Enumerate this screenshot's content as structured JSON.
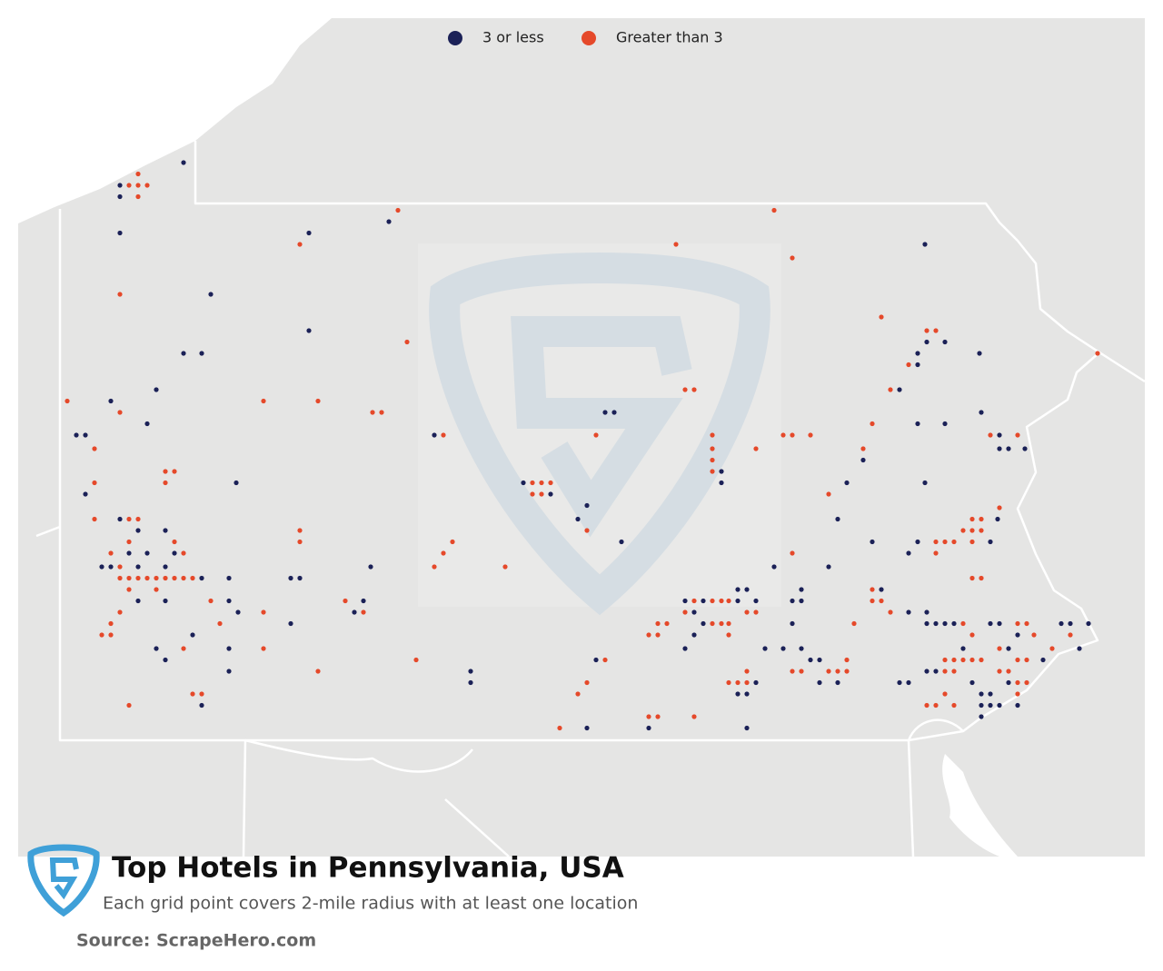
{
  "chart_data": {
    "type": "map",
    "title": "Top Hotels in Pennsylvania, USA",
    "subtitle": "Each grid point covers 2-mile radius with at least one location",
    "source": "Source: ScrapeHero.com",
    "series": [
      {
        "name": "3 or less",
        "color": "#1b2157",
        "points": [
          [
            -79.84,
            42.18
          ],
          [
            -80.19,
            42.08
          ],
          [
            -80.19,
            42.03
          ],
          [
            -80.19,
            41.87
          ],
          [
            -79.15,
            41.87
          ],
          [
            -78.71,
            41.92
          ],
          [
            -79.69,
            41.6
          ],
          [
            -79.15,
            41.44
          ],
          [
            -79.84,
            41.34
          ],
          [
            -79.74,
            41.34
          ],
          [
            -79.99,
            41.18
          ],
          [
            -80.24,
            41.13
          ],
          [
            -80.04,
            41.03
          ],
          [
            -80.43,
            40.98
          ],
          [
            -80.38,
            40.98
          ],
          [
            -80.38,
            40.72
          ],
          [
            -79.55,
            40.77
          ],
          [
            -80.19,
            40.61
          ],
          [
            -80.09,
            40.56
          ],
          [
            -79.94,
            40.56
          ],
          [
            -80.14,
            40.46
          ],
          [
            -80.04,
            40.46
          ],
          [
            -79.89,
            40.46
          ],
          [
            -80.29,
            40.4
          ],
          [
            -80.24,
            40.4
          ],
          [
            -80.09,
            40.4
          ],
          [
            -79.94,
            40.4
          ],
          [
            -79.74,
            40.35
          ],
          [
            -79.59,
            40.35
          ],
          [
            -79.25,
            40.35
          ],
          [
            -79.2,
            40.35
          ],
          [
            -78.81,
            40.4
          ],
          [
            -80.09,
            40.25
          ],
          [
            -79.94,
            40.25
          ],
          [
            -79.59,
            40.25
          ],
          [
            -79.54,
            40.2
          ],
          [
            -78.9,
            40.2
          ],
          [
            -78.85,
            40.25
          ],
          [
            -79.25,
            40.15
          ],
          [
            -79.79,
            40.1
          ],
          [
            -79.99,
            40.04
          ],
          [
            -79.94,
            39.99
          ],
          [
            -79.59,
            40.04
          ],
          [
            -79.74,
            39.79
          ],
          [
            -79.59,
            39.94
          ],
          [
            -78.26,
            39.94
          ],
          [
            -78.26,
            39.89
          ],
          [
            -78.46,
            40.98
          ],
          [
            -77.52,
            41.08
          ],
          [
            -77.47,
            41.08
          ],
          [
            -77.97,
            40.77
          ],
          [
            -77.82,
            40.72
          ],
          [
            -77.62,
            40.67
          ],
          [
            -77.67,
            40.61
          ],
          [
            -77.43,
            40.51
          ],
          [
            -77.57,
            39.99
          ],
          [
            -77.62,
            39.69
          ],
          [
            -77.28,
            39.69
          ],
          [
            -76.74,
            39.69
          ],
          [
            -76.88,
            40.82
          ],
          [
            -76.88,
            40.77
          ],
          [
            -75.76,
            41.82
          ],
          [
            -75.65,
            41.39
          ],
          [
            -75.75,
            41.39
          ],
          [
            -75.8,
            41.34
          ],
          [
            -75.8,
            41.29
          ],
          [
            -75.46,
            41.34
          ],
          [
            -75.9,
            41.18
          ],
          [
            -75.8,
            41.03
          ],
          [
            -75.65,
            41.03
          ],
          [
            -75.45,
            41.08
          ],
          [
            -75.35,
            40.98
          ],
          [
            -75.35,
            40.92
          ],
          [
            -75.21,
            40.92
          ],
          [
            -75.3,
            40.92
          ],
          [
            -75.76,
            40.77
          ],
          [
            -76.1,
            40.87
          ],
          [
            -76.19,
            40.77
          ],
          [
            -76.24,
            40.61
          ],
          [
            -76.05,
            40.51
          ],
          [
            -75.85,
            40.46
          ],
          [
            -75.8,
            40.51
          ],
          [
            -75.4,
            40.51
          ],
          [
            -75.36,
            40.61
          ],
          [
            -76.29,
            40.4
          ],
          [
            -76.59,
            40.4
          ],
          [
            -76.44,
            40.3
          ],
          [
            -76.49,
            40.25
          ],
          [
            -76.44,
            40.25
          ],
          [
            -76.0,
            40.3
          ],
          [
            -75.85,
            40.2
          ],
          [
            -75.75,
            40.2
          ],
          [
            -75.75,
            40.15
          ],
          [
            -75.7,
            40.15
          ],
          [
            -75.65,
            40.15
          ],
          [
            -75.6,
            40.15
          ],
          [
            -75.55,
            40.04
          ],
          [
            -75.4,
            40.15
          ],
          [
            -75.35,
            40.15
          ],
          [
            -75.3,
            40.04
          ],
          [
            -75.25,
            40.1
          ],
          [
            -75.01,
            40.15
          ],
          [
            -74.96,
            40.15
          ],
          [
            -74.86,
            40.15
          ],
          [
            -74.91,
            40.04
          ],
          [
            -75.11,
            39.99
          ],
          [
            -75.75,
            39.94
          ],
          [
            -75.7,
            39.94
          ],
          [
            -75.5,
            39.89
          ],
          [
            -75.45,
            39.84
          ],
          [
            -75.4,
            39.84
          ],
          [
            -75.45,
            39.79
          ],
          [
            -75.4,
            39.79
          ],
          [
            -75.35,
            39.79
          ],
          [
            -75.25,
            39.79
          ],
          [
            -75.3,
            39.89
          ],
          [
            -75.45,
            39.74
          ],
          [
            -75.85,
            39.89
          ],
          [
            -75.9,
            39.89
          ],
          [
            -76.24,
            39.89
          ],
          [
            -76.34,
            39.89
          ],
          [
            -76.39,
            39.99
          ],
          [
            -76.34,
            39.99
          ],
          [
            -76.44,
            40.04
          ],
          [
            -76.54,
            40.04
          ],
          [
            -76.49,
            40.15
          ],
          [
            -76.64,
            40.04
          ],
          [
            -76.69,
            39.89
          ],
          [
            -76.79,
            39.84
          ],
          [
            -76.74,
            39.84
          ],
          [
            -77.08,
            40.25
          ],
          [
            -77.03,
            40.2
          ],
          [
            -76.98,
            40.25
          ],
          [
            -76.98,
            40.15
          ],
          [
            -77.03,
            40.1
          ],
          [
            -77.08,
            40.04
          ],
          [
            -76.79,
            40.3
          ],
          [
            -76.74,
            40.3
          ],
          [
            -76.79,
            40.25
          ],
          [
            -76.69,
            40.25
          ]
        ]
      },
      {
        "name": "Greater than 3",
        "color": "#e5492a",
        "points": [
          [
            -80.09,
            42.13
          ],
          [
            -80.14,
            42.08
          ],
          [
            -80.09,
            42.08
          ],
          [
            -80.04,
            42.08
          ],
          [
            -80.09,
            42.03
          ],
          [
            -78.66,
            41.97
          ],
          [
            -79.2,
            41.82
          ],
          [
            -80.19,
            41.6
          ],
          [
            -80.48,
            41.13
          ],
          [
            -80.19,
            41.08
          ],
          [
            -79.4,
            41.13
          ],
          [
            -79.1,
            41.13
          ],
          [
            -78.8,
            41.08
          ],
          [
            -78.75,
            41.08
          ],
          [
            -78.61,
            41.39
          ],
          [
            -77.13,
            41.82
          ],
          [
            -76.59,
            41.97
          ],
          [
            -76.49,
            41.76
          ],
          [
            -76.0,
            41.5
          ],
          [
            -75.75,
            41.44
          ],
          [
            -75.7,
            41.44
          ],
          [
            -75.85,
            41.29
          ],
          [
            -75.95,
            41.18
          ],
          [
            -77.08,
            41.18
          ],
          [
            -77.03,
            41.18
          ],
          [
            -77.57,
            40.98
          ],
          [
            -78.41,
            40.98
          ],
          [
            -76.93,
            40.98
          ],
          [
            -76.93,
            40.92
          ],
          [
            -76.93,
            40.87
          ],
          [
            -76.93,
            40.82
          ],
          [
            -76.69,
            40.92
          ],
          [
            -76.54,
            40.98
          ],
          [
            -76.49,
            40.98
          ],
          [
            -76.39,
            40.98
          ],
          [
            -76.05,
            41.03
          ],
          [
            -76.1,
            40.92
          ],
          [
            -76.29,
            40.72
          ],
          [
            -75.4,
            40.98
          ],
          [
            -75.25,
            40.98
          ],
          [
            -80.33,
            40.92
          ],
          [
            -80.33,
            40.77
          ],
          [
            -79.94,
            40.82
          ],
          [
            -79.89,
            40.82
          ],
          [
            -79.94,
            40.77
          ],
          [
            -80.33,
            40.61
          ],
          [
            -80.14,
            40.61
          ],
          [
            -80.09,
            40.61
          ],
          [
            -80.14,
            40.51
          ],
          [
            -79.89,
            40.51
          ],
          [
            -79.84,
            40.46
          ],
          [
            -79.2,
            40.56
          ],
          [
            -79.2,
            40.51
          ],
          [
            -78.36,
            40.51
          ],
          [
            -78.41,
            40.46
          ],
          [
            -78.46,
            40.4
          ],
          [
            -78.07,
            40.4
          ],
          [
            -77.92,
            40.77
          ],
          [
            -77.87,
            40.77
          ],
          [
            -77.92,
            40.72
          ],
          [
            -77.87,
            40.72
          ],
          [
            -77.82,
            40.77
          ],
          [
            -77.62,
            40.56
          ],
          [
            -80.24,
            40.46
          ],
          [
            -80.19,
            40.4
          ],
          [
            -80.19,
            40.35
          ],
          [
            -80.14,
            40.35
          ],
          [
            -80.09,
            40.35
          ],
          [
            -80.04,
            40.35
          ],
          [
            -79.99,
            40.35
          ],
          [
            -79.94,
            40.35
          ],
          [
            -79.89,
            40.35
          ],
          [
            -79.84,
            40.35
          ],
          [
            -79.79,
            40.35
          ],
          [
            -80.14,
            40.3
          ],
          [
            -79.99,
            40.3
          ],
          [
            -79.69,
            40.25
          ],
          [
            -79.4,
            40.2
          ],
          [
            -78.95,
            40.25
          ],
          [
            -78.85,
            40.2
          ],
          [
            -80.19,
            40.2
          ],
          [
            -80.24,
            40.15
          ],
          [
            -80.29,
            40.1
          ],
          [
            -80.24,
            40.1
          ],
          [
            -79.64,
            40.15
          ],
          [
            -79.84,
            40.04
          ],
          [
            -79.4,
            40.04
          ],
          [
            -79.1,
            39.94
          ],
          [
            -78.56,
            39.99
          ],
          [
            -77.52,
            39.99
          ],
          [
            -77.62,
            39.89
          ],
          [
            -77.67,
            39.84
          ],
          [
            -77.77,
            39.69
          ],
          [
            -77.28,
            39.74
          ],
          [
            -77.23,
            39.74
          ],
          [
            -77.03,
            39.74
          ],
          [
            -79.79,
            39.84
          ],
          [
            -79.74,
            39.84
          ],
          [
            -80.14,
            39.79
          ],
          [
            -75.35,
            40.66
          ],
          [
            -75.5,
            40.61
          ],
          [
            -75.45,
            40.61
          ],
          [
            -75.55,
            40.56
          ],
          [
            -75.5,
            40.56
          ],
          [
            -75.45,
            40.56
          ],
          [
            -75.7,
            40.51
          ],
          [
            -75.65,
            40.51
          ],
          [
            -75.6,
            40.51
          ],
          [
            -75.5,
            40.51
          ],
          [
            -75.7,
            40.46
          ],
          [
            -75.5,
            40.35
          ],
          [
            -75.45,
            40.35
          ],
          [
            -76.49,
            40.46
          ],
          [
            -76.05,
            40.3
          ],
          [
            -76.05,
            40.25
          ],
          [
            -76.0,
            40.25
          ],
          [
            -76.15,
            40.15
          ],
          [
            -75.95,
            40.2
          ],
          [
            -75.55,
            40.15
          ],
          [
            -75.25,
            40.15
          ],
          [
            -75.2,
            40.15
          ],
          [
            -75.16,
            40.1
          ],
          [
            -74.96,
            40.1
          ],
          [
            -75.06,
            40.04
          ],
          [
            -75.35,
            40.04
          ],
          [
            -75.5,
            40.1
          ],
          [
            -75.65,
            39.99
          ],
          [
            -75.6,
            39.99
          ],
          [
            -75.55,
            39.99
          ],
          [
            -75.5,
            39.99
          ],
          [
            -75.45,
            39.99
          ],
          [
            -75.25,
            39.99
          ],
          [
            -75.2,
            39.99
          ],
          [
            -75.35,
            39.94
          ],
          [
            -75.65,
            39.94
          ],
          [
            -75.6,
            39.94
          ],
          [
            -75.3,
            39.94
          ],
          [
            -75.25,
            39.89
          ],
          [
            -75.2,
            39.89
          ],
          [
            -75.25,
            39.84
          ],
          [
            -75.7,
            39.79
          ],
          [
            -75.6,
            39.79
          ],
          [
            -75.75,
            39.79
          ],
          [
            -75.65,
            39.84
          ],
          [
            -76.49,
            39.94
          ],
          [
            -76.44,
            39.94
          ],
          [
            -76.29,
            39.94
          ],
          [
            -76.24,
            39.94
          ],
          [
            -76.19,
            39.94
          ],
          [
            -76.19,
            39.99
          ],
          [
            -76.84,
            39.89
          ],
          [
            -76.79,
            39.89
          ],
          [
            -76.74,
            39.89
          ],
          [
            -76.74,
            39.94
          ],
          [
            -77.03,
            40.25
          ],
          [
            -76.93,
            40.25
          ],
          [
            -76.88,
            40.25
          ],
          [
            -76.84,
            40.25
          ],
          [
            -76.74,
            40.2
          ],
          [
            -76.69,
            40.2
          ],
          [
            -77.08,
            40.2
          ],
          [
            -76.93,
            40.15
          ],
          [
            -76.88,
            40.15
          ],
          [
            -76.84,
            40.15
          ],
          [
            -76.84,
            40.1
          ],
          [
            -77.23,
            40.15
          ],
          [
            -77.18,
            40.15
          ],
          [
            -77.28,
            40.1
          ],
          [
            -77.23,
            40.1
          ],
          [
            -74.81,
            41.34
          ]
        ]
      }
    ]
  }
}
